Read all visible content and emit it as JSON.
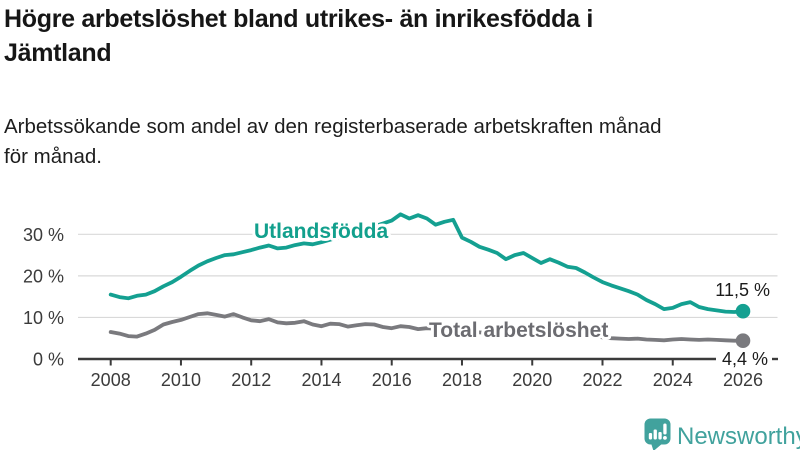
{
  "header": {
    "title": "Högre arbetslöshet bland utrikes- än inrikesfödda i Jämtland",
    "title_lines": [
      "Högre arbetslöshet bland utrikes- än inrikesfödda i",
      "Jämtland"
    ],
    "subtitle": "Arbetssökande som andel av den registerbaserade arbetskraften månad för månad.",
    "subtitle_lines": [
      "Arbetssökande som andel av den registerbaserade arbetskraften månad",
      "för månad."
    ]
  },
  "chart_data": {
    "type": "line",
    "title": "Högre arbetslöshet bland utrikes- än inrikesfödda i Jämtland",
    "xlabel": "",
    "ylabel": "",
    "ylim": [
      0,
      40
    ],
    "yticks": [
      0,
      10,
      20,
      30
    ],
    "ytick_labels": [
      "0 %",
      "10 %",
      "20 %",
      "30 %"
    ],
    "xticks": [
      2008,
      2010,
      2012,
      2014,
      2016,
      2018,
      2020,
      2022,
      2024,
      2026
    ],
    "grid": "horizontal",
    "legend": "inline-labels",
    "x": [
      2008.0,
      2008.25,
      2008.5,
      2008.75,
      2009.0,
      2009.25,
      2009.5,
      2009.75,
      2010.0,
      2010.25,
      2010.5,
      2010.75,
      2011.0,
      2011.25,
      2011.5,
      2011.75,
      2012.0,
      2012.25,
      2012.5,
      2012.75,
      2013.0,
      2013.25,
      2013.5,
      2013.75,
      2014.0,
      2014.25,
      2014.5,
      2014.75,
      2015.0,
      2015.25,
      2015.5,
      2015.75,
      2016.0,
      2016.25,
      2016.5,
      2016.75,
      2017.0,
      2017.25,
      2017.5,
      2017.75,
      2018.0,
      2018.25,
      2018.5,
      2018.75,
      2019.0,
      2019.25,
      2019.5,
      2019.75,
      2020.0,
      2020.25,
      2020.5,
      2020.75,
      2021.0,
      2021.25,
      2021.5,
      2021.75,
      2022.0,
      2022.25,
      2022.5,
      2022.75,
      2023.0,
      2023.25,
      2023.5,
      2023.75,
      2024.0,
      2024.25,
      2024.5,
      2024.75,
      2025.0,
      2025.25,
      2025.5,
      2025.75,
      2026.0
    ],
    "series": [
      {
        "name": "Utlandsfödda",
        "color": "#14a091",
        "label_color": "#12a08d",
        "end_label": "11,5 %",
        "end_value": 11.5,
        "values": [
          15.5,
          14.9,
          14.6,
          15.2,
          15.5,
          16.3,
          17.5,
          18.5,
          19.8,
          21.2,
          22.5,
          23.5,
          24.3,
          25.0,
          25.2,
          25.7,
          26.2,
          26.8,
          27.3,
          26.6,
          26.8,
          27.4,
          27.8,
          27.6,
          28.1,
          28.7,
          29.3,
          29.9,
          30.5,
          31.2,
          31.9,
          32.6,
          33.3,
          34.8,
          33.8,
          34.6,
          33.8,
          32.3,
          33.0,
          33.5,
          29.2,
          28.2,
          27.0,
          26.3,
          25.5,
          24.0,
          25.0,
          25.5,
          24.3,
          23.1,
          24.0,
          23.2,
          22.2,
          21.9,
          20.8,
          19.6,
          18.5,
          17.7,
          17.0,
          16.3,
          15.5,
          14.2,
          13.2,
          12.0,
          12.3,
          13.2,
          13.7,
          12.5,
          12.0,
          11.7,
          11.4,
          11.3,
          11.5
        ]
      },
      {
        "name": "Total arbetslöshet",
        "color": "#7a7a7e",
        "label_color": "#6c6c71",
        "end_label": "4,4 %",
        "end_value": 4.4,
        "values": [
          6.5,
          6.1,
          5.5,
          5.4,
          6.1,
          7.0,
          8.3,
          8.9,
          9.4,
          10.1,
          10.8,
          11.0,
          10.6,
          10.2,
          10.8,
          10.0,
          9.3,
          9.1,
          9.6,
          8.8,
          8.6,
          8.7,
          9.1,
          8.3,
          7.9,
          8.5,
          8.4,
          7.8,
          8.1,
          8.4,
          8.3,
          7.7,
          7.4,
          7.9,
          7.7,
          7.2,
          7.4,
          7.3,
          7.2,
          6.9,
          6.6,
          6.5,
          6.4,
          6.2,
          6.1,
          6.0,
          6.2,
          6.3,
          6.5,
          7.0,
          7.2,
          6.8,
          6.5,
          6.2,
          5.8,
          5.5,
          5.2,
          5.0,
          4.9,
          4.8,
          4.9,
          4.7,
          4.6,
          4.5,
          4.7,
          4.8,
          4.7,
          4.6,
          4.7,
          4.6,
          4.5,
          4.4,
          4.4
        ]
      }
    ],
    "colors": {
      "grid": "#d9d9d9",
      "axis": "#3b3b3b",
      "annotation_text": "#1b1b1b",
      "title_text": "#161616",
      "brand_teal": "#41a29d"
    }
  },
  "branding": {
    "name": "Newsworthy",
    "icon": "bar-chart-speech-bubble"
  }
}
